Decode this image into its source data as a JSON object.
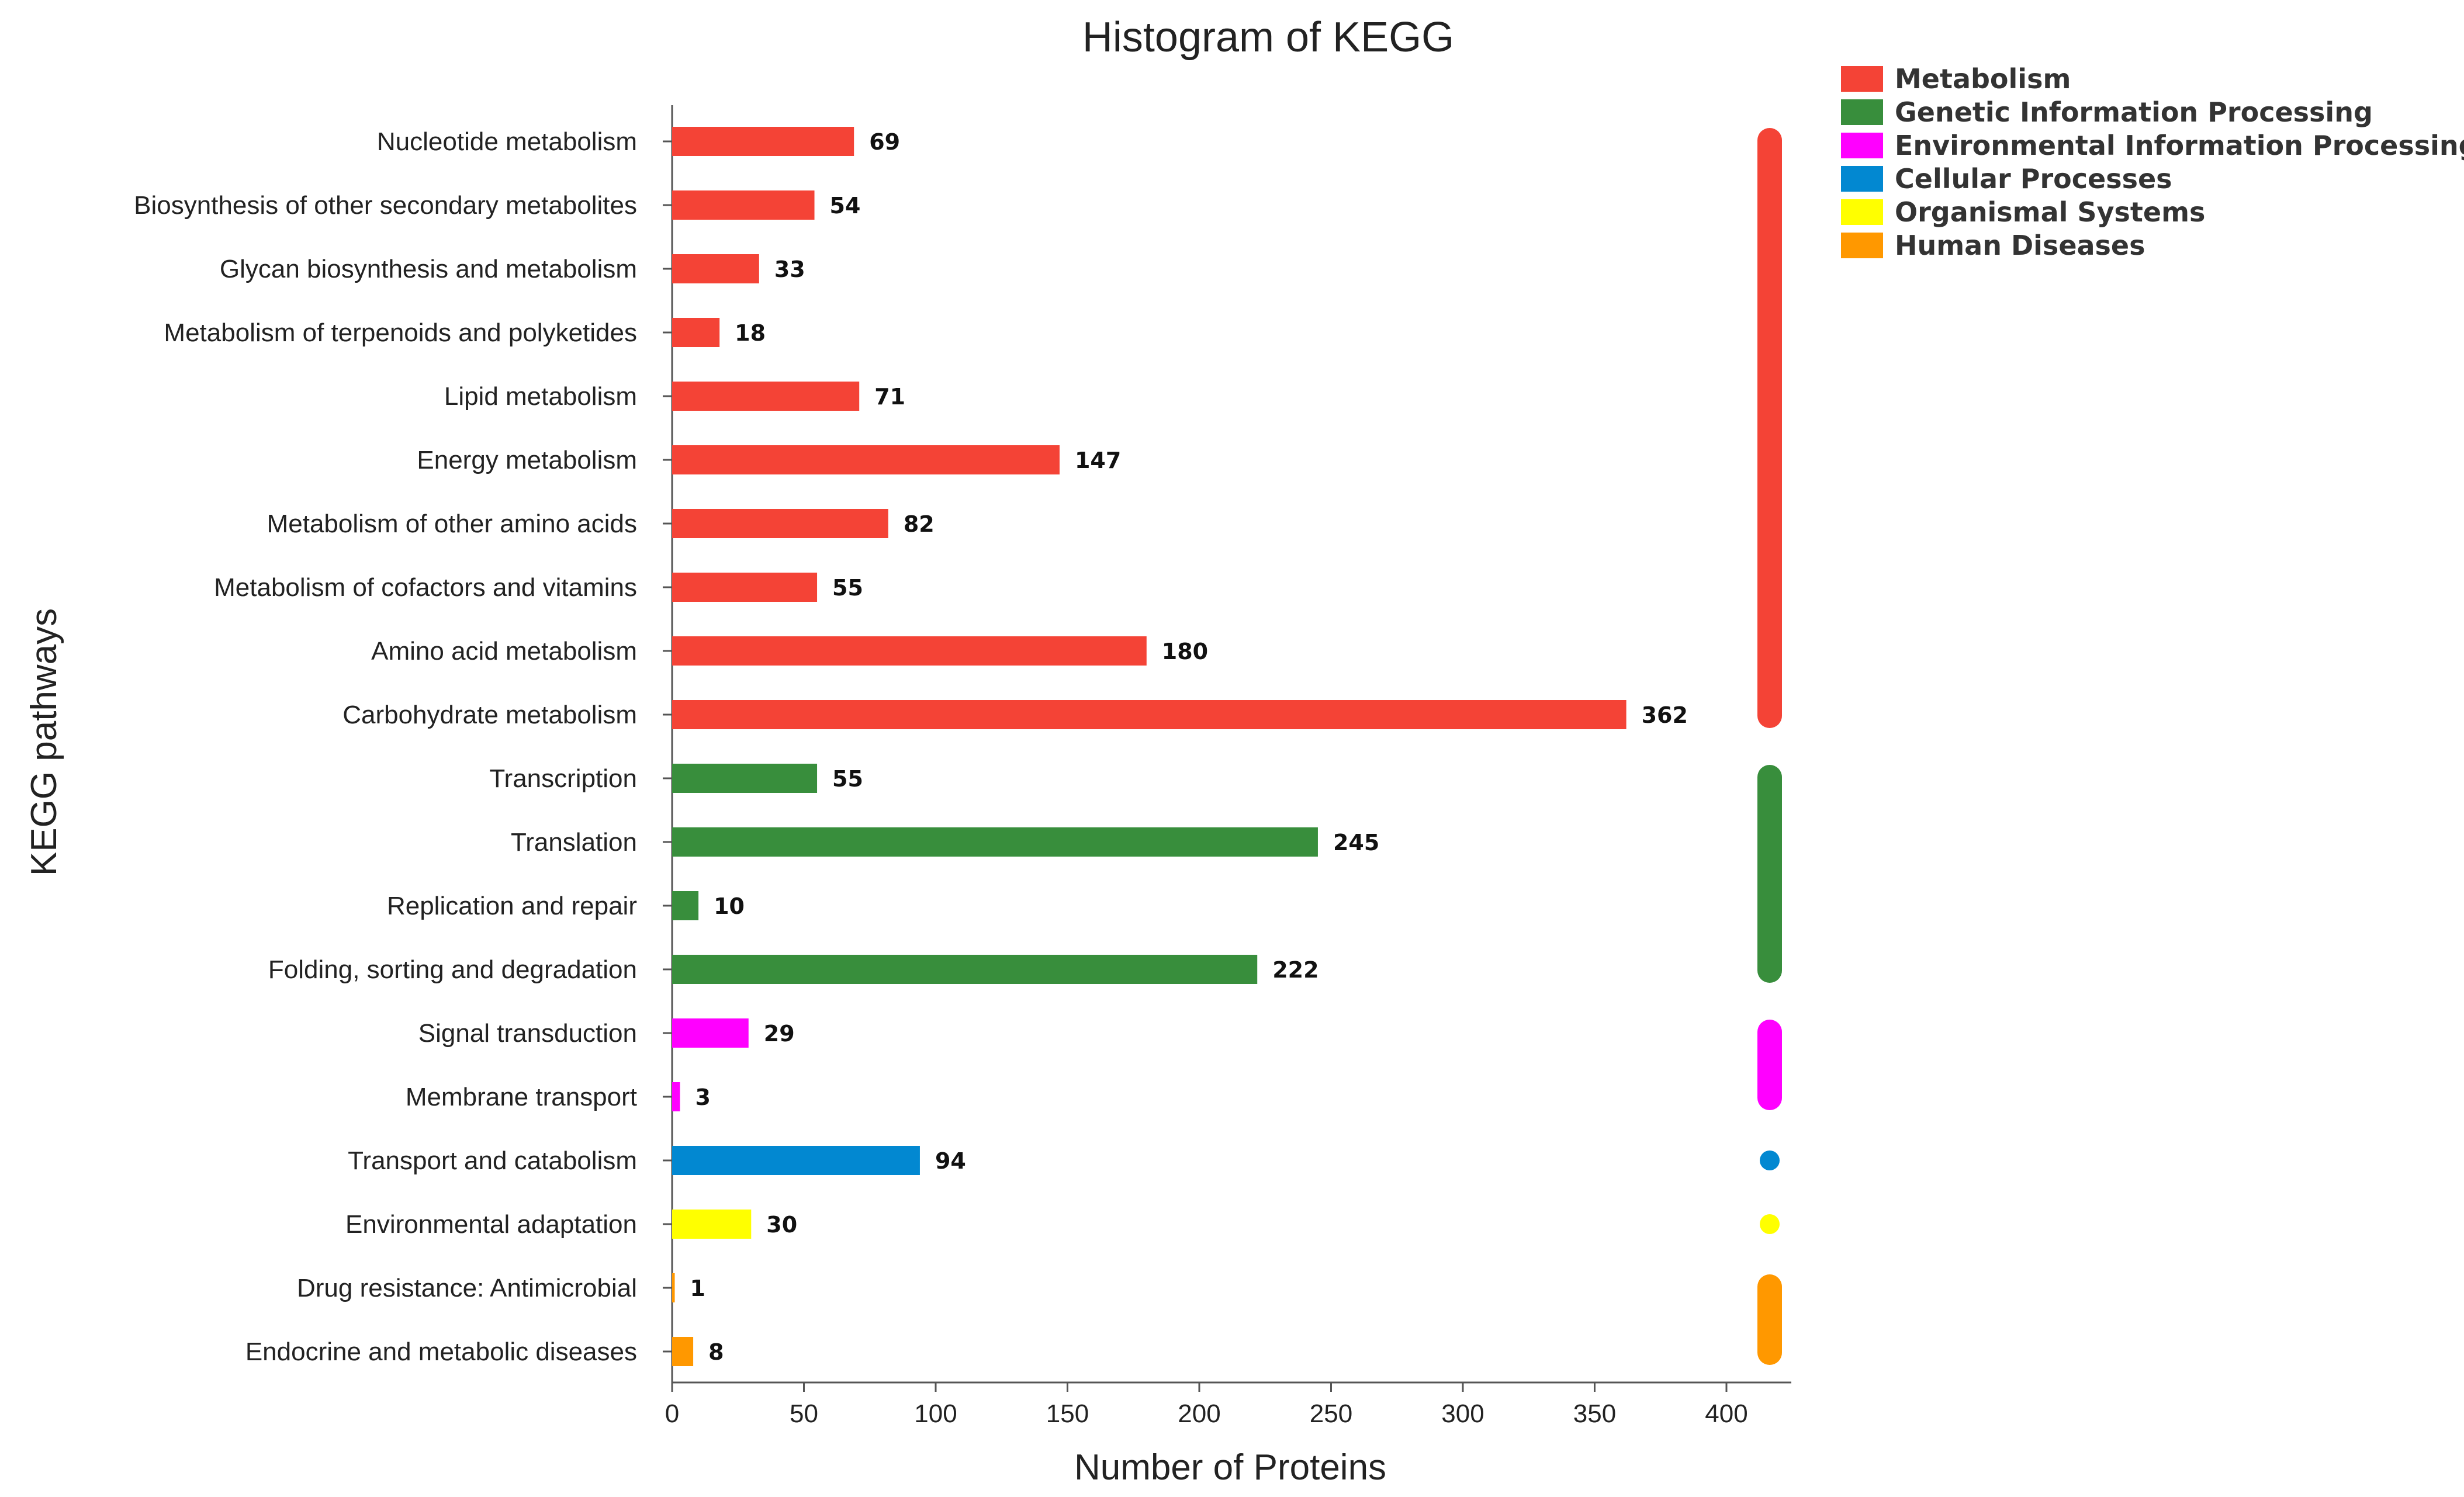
{
  "chart_data": {
    "type": "bar",
    "orientation": "horizontal",
    "title": "Histogram of KEGG",
    "xlabel": "Number of Proteins",
    "ylabel": "KEGG pathways",
    "xlim": [
      0,
      425
    ],
    "xticks": [
      0,
      50,
      100,
      150,
      200,
      250,
      300,
      350,
      400
    ],
    "grid": false,
    "legend_position": "top-right",
    "groups": [
      {
        "name": "Metabolism",
        "color": "#f44336"
      },
      {
        "name": "Genetic Information Processing",
        "color": "#388e3c"
      },
      {
        "name": "Environmental Information Processing",
        "color": "#ff00ff"
      },
      {
        "name": "Cellular Processes",
        "color": "#0288d1"
      },
      {
        "name": "Organismal Systems",
        "color": "#ffff00"
      },
      {
        "name": "Human Diseases",
        "color": "#ff9800"
      }
    ],
    "categories": [
      {
        "label": "Nucleotide metabolism",
        "value": 69,
        "group": 0
      },
      {
        "label": "Biosynthesis of other secondary metabolites",
        "value": 54,
        "group": 0
      },
      {
        "label": "Glycan biosynthesis and metabolism",
        "value": 33,
        "group": 0
      },
      {
        "label": "Metabolism of terpenoids and polyketides",
        "value": 18,
        "group": 0
      },
      {
        "label": "Lipid metabolism",
        "value": 71,
        "group": 0
      },
      {
        "label": "Energy metabolism",
        "value": 147,
        "group": 0
      },
      {
        "label": "Metabolism of other amino acids",
        "value": 82,
        "group": 0
      },
      {
        "label": "Metabolism of cofactors and vitamins",
        "value": 55,
        "group": 0
      },
      {
        "label": "Amino acid metabolism",
        "value": 180,
        "group": 0
      },
      {
        "label": "Carbohydrate metabolism",
        "value": 362,
        "group": 0
      },
      {
        "label": "Transcription",
        "value": 55,
        "group": 1
      },
      {
        "label": "Translation",
        "value": 245,
        "group": 1
      },
      {
        "label": "Replication and repair",
        "value": 10,
        "group": 1
      },
      {
        "label": "Folding, sorting and degradation",
        "value": 222,
        "group": 1
      },
      {
        "label": "Signal transduction",
        "value": 29,
        "group": 2
      },
      {
        "label": "Membrane transport",
        "value": 3,
        "group": 2
      },
      {
        "label": "Transport and catabolism",
        "value": 94,
        "group": 3
      },
      {
        "label": "Environmental adaptation",
        "value": 30,
        "group": 4
      },
      {
        "label": "Drug resistance: Antimicrobial",
        "value": 1,
        "group": 5
      },
      {
        "label": "Endocrine and metabolic diseases",
        "value": 8,
        "group": 5
      }
    ]
  }
}
